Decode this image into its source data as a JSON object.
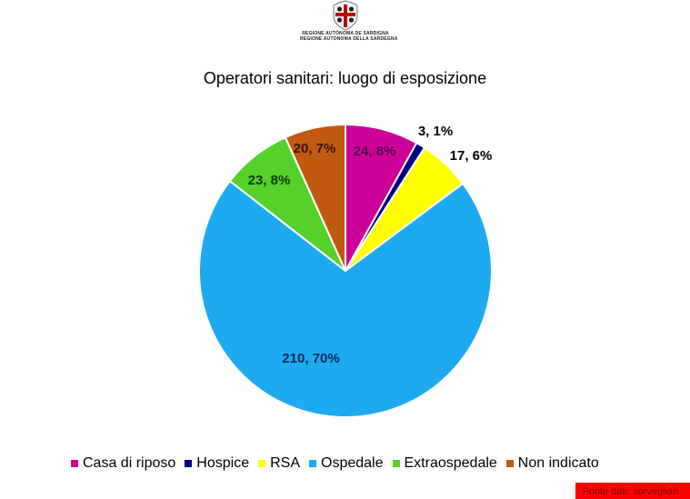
{
  "header": {
    "logo_name": "regione-sardegna-coat-of-arms",
    "logo_line1": "REGIONE AUTÒNOMA DE SARDIGNA",
    "logo_line2": "REGIONE AUTONOMA DELLA SARDEGNA"
  },
  "chart_data": {
    "type": "pie",
    "title": "Operatori sanitari: luogo di esposizione",
    "categories": [
      "Casa di riposo",
      "Hospice",
      "RSA",
      "Ospedale",
      "Extraospedale",
      "Non indicato"
    ],
    "values": [
      24,
      3,
      17,
      210,
      23,
      20
    ],
    "percentages": [
      8,
      1,
      6,
      70,
      8,
      7
    ],
    "labels": [
      "24, 8%",
      "3, 1%",
      "17, 6%",
      "210, 70%",
      "23, 8%",
      "20, 7%"
    ],
    "colors": [
      "#cc0099",
      "#000080",
      "#ffff00",
      "#1eaaf1",
      "#56d02b",
      "#c05a10"
    ],
    "label_colors": [
      "#5a0044",
      "#000000",
      "#000000",
      "#0b2a55",
      "#0d3a0d",
      "#3a1400"
    ],
    "start_angle_deg": 0,
    "direction": "clockwise",
    "legend_position": "bottom"
  },
  "legend": {
    "items": [
      {
        "label": "Casa di riposo",
        "color": "#cc0099"
      },
      {
        "label": "Hospice",
        "color": "#000080"
      },
      {
        "label": "RSA",
        "color": "#ffff00"
      },
      {
        "label": "Ospedale",
        "color": "#1eaaf1"
      },
      {
        "label": "Extraospedale",
        "color": "#56d02b"
      },
      {
        "label": "Non indicato",
        "color": "#c05a10"
      }
    ]
  },
  "footer": {
    "source_label": "Fonte dati: sorveglian",
    "source_bg": "#ff0000"
  }
}
